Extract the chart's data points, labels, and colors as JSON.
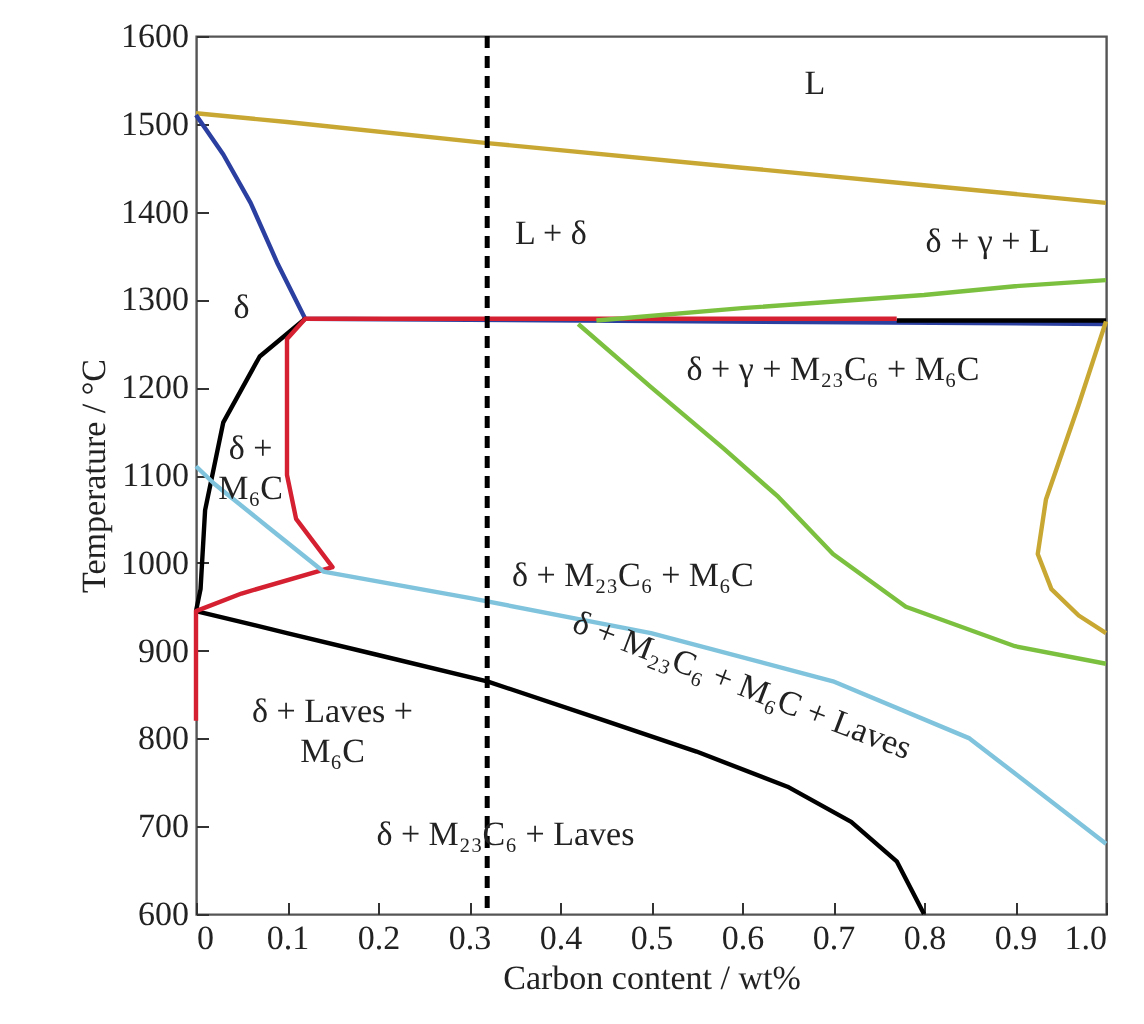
{
  "chart_data": {
    "type": "line",
    "xlabel": "Carbon content / wt%",
    "ylabel": "Temperature / °C",
    "xlim": [
      0,
      1
    ],
    "xticks": [
      0,
      0.1,
      0.2,
      0.3,
      0.4,
      0.5,
      0.6,
      0.7,
      0.8,
      0.9,
      {
        "value": 1,
        "label": "1.0"
      }
    ],
    "ylim": [
      600,
      1600
    ],
    "yticks": [
      600,
      700,
      800,
      900,
      1000,
      1100,
      1200,
      1300,
      1400,
      1500,
      1600
    ],
    "grid": false,
    "marker": "none",
    "line_style": "solid",
    "series": [
      {
        "color": "#c8a832",
        "x": [
          0,
          0.1,
          0.32,
          0.6,
          0.8,
          1.0
        ],
        "values": [
          1512,
          1502,
          1478,
          1450,
          1430,
          1410
        ]
      },
      {
        "color": "#2b3fa0",
        "x": [
          0,
          0.03,
          0.06,
          0.09,
          0.12,
          1.0
        ],
        "values": [
          1510,
          1465,
          1410,
          1340,
          1278,
          1272
        ]
      },
      {
        "color": "#000000",
        "x": [
          0.12,
          0.07,
          0.03,
          0.01,
          0.005,
          0
        ],
        "values": [
          1278,
          1235,
          1160,
          1060,
          970,
          945
        ]
      },
      {
        "color": "#000000",
        "x": [
          0.77,
          1.0
        ],
        "values": [
          1276,
          1276
        ]
      },
      {
        "color": "#000000",
        "x": [
          0,
          0.1,
          0.2,
          0.32,
          0.45,
          0.55,
          0.65,
          0.72,
          0.77,
          0.8
        ],
        "values": [
          945,
          920,
          895,
          865,
          820,
          785,
          745,
          705,
          660,
          600
        ]
      },
      {
        "color": "#d42030",
        "x": [
          0.77,
          0.12,
          0.1,
          0.1,
          0.11,
          0.15,
          0.05,
          0,
          0
        ],
        "values": [
          1278,
          1278,
          1255,
          1100,
          1050,
          995,
          965,
          945,
          820
        ]
      },
      {
        "color": "#7fc4dc",
        "x": [
          0,
          0.02,
          0.08,
          0.14,
          0.3,
          0.5,
          0.7,
          0.85,
          1.0
        ],
        "values": [
          1110,
          1090,
          1040,
          990,
          960,
          920,
          865,
          800,
          680
        ]
      },
      {
        "color": "#7cc040",
        "x": [
          0.44,
          0.6,
          0.8,
          0.9,
          1.0
        ],
        "values": [
          1276,
          1290,
          1305,
          1315,
          1322
        ]
      },
      {
        "color": "#7cc040",
        "x": [
          0.42,
          0.5,
          0.58,
          0.64,
          0.7,
          0.78,
          0.9,
          1.0
        ],
        "values": [
          1272,
          1200,
          1130,
          1075,
          1010,
          950,
          905,
          885
        ]
      },
      {
        "color": "#c8a832",
        "x": [
          1.0,
          0.97,
          0.934,
          0.925,
          0.94,
          0.97,
          1.0
        ],
        "values": [
          1275,
          1180,
          1072,
          1010,
          970,
          940,
          920
        ]
      }
    ],
    "ref_lines": [
      {
        "axis": "x",
        "value": 0.32,
        "color": "#000000",
        "line_style": "dashed"
      }
    ],
    "annotations": [
      "L",
      "L + δ",
      "δ + γ + L",
      "δ",
      "δ + γ + M₂₃C₆ + M₆C",
      "δ +\nM₆C",
      "δ + M₂₃C₆ + M₆C",
      "δ + M₂₃C₆ + M₆C + Laves",
      "δ + Laves +\nM₆C",
      "δ + M₂₃C₆ + Laves"
    ]
  }
}
